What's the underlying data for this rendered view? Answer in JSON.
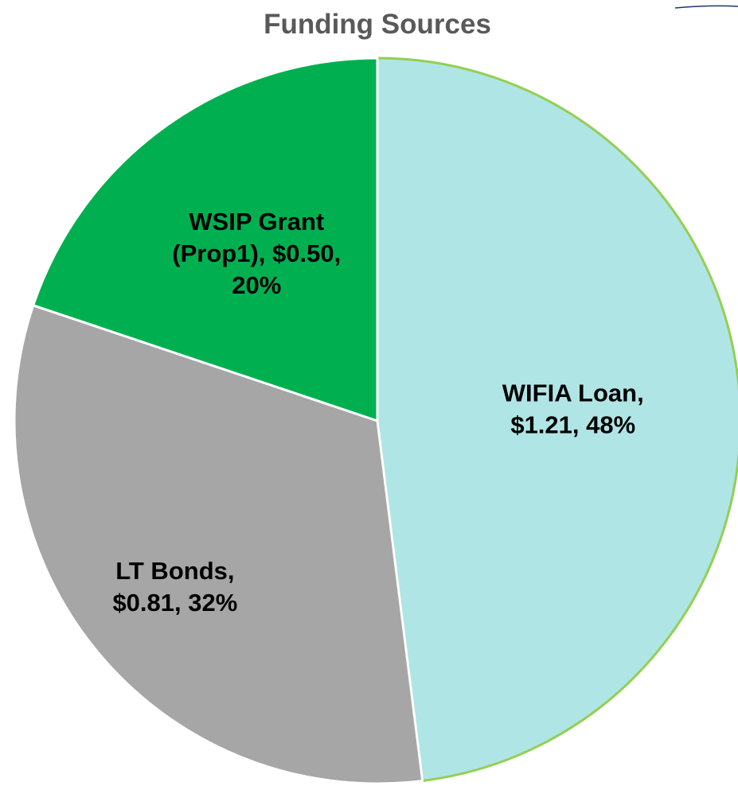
{
  "chart_data": {
    "type": "pie",
    "title": "Funding Sources",
    "categories": [
      "WIFIA Loan",
      "LT Bonds",
      "WSIP Grant (Prop1)"
    ],
    "values": [
      1.21,
      0.81,
      0.5
    ],
    "value_labels": [
      [
        "WIFIA Loan,",
        "$1.21, 48%"
      ],
      [
        "LT Bonds,",
        "$0.81, 32%"
      ],
      [
        "WSIP Grant",
        "(Prop1), $0.50,",
        "20%"
      ]
    ],
    "colors": [
      "#b0e5e6",
      "#a6a6a6",
      "#00b050"
    ],
    "edge_colors": [
      "#92d050",
      "#ffffff",
      "#ffffff"
    ],
    "start_angle": 0,
    "direction": "clockwise"
  }
}
